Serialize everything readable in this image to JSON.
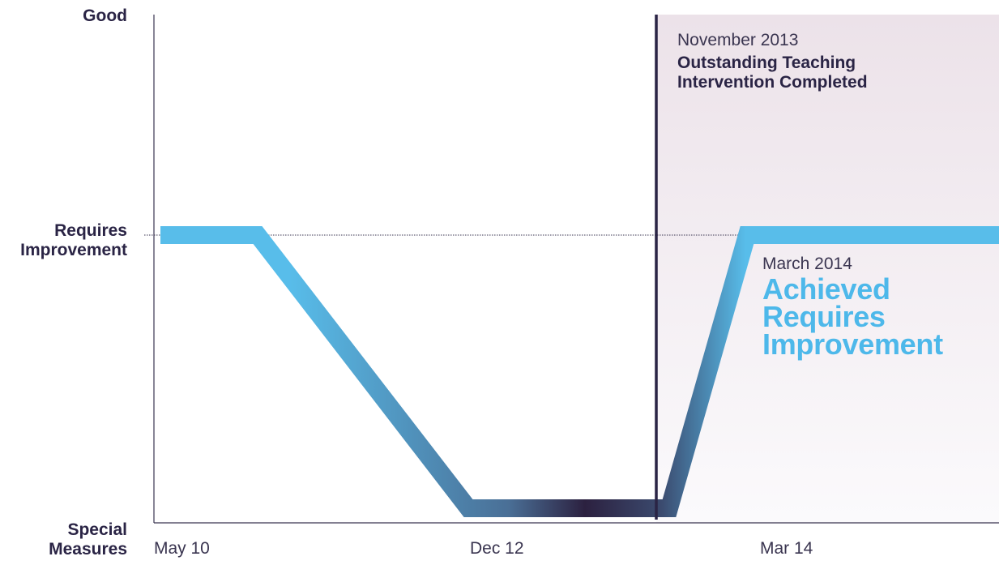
{
  "chart_data": {
    "type": "line",
    "y_categories": [
      "Special Measures",
      "Requires Improvement",
      "Good"
    ],
    "y_tick_labels": [
      "Good",
      "Requires\nImprovement",
      "Special\nMeasures"
    ],
    "x_tick_labels": [
      "May 10",
      "Dec 12",
      "Mar 14"
    ],
    "series": [
      {
        "points": [
          {
            "y": "Requires Improvement"
          },
          {
            "y": "Requires Improvement"
          },
          {
            "y": "Special Measures"
          },
          {
            "y": "Special Measures"
          },
          {
            "y": "Requires Improvement"
          },
          {
            "y": "Requires Improvement"
          }
        ]
      }
    ],
    "reference_line": {
      "y": "Requires Improvement",
      "style": "dotted"
    },
    "annotations": [
      {
        "date": "November 2013",
        "text": "Outstanding Teaching\nIntervention Completed",
        "marker": "vertical-line"
      },
      {
        "date": "March 2014",
        "text": "Achieved\nRequires\nImprovement"
      }
    ],
    "grid": false,
    "legend": "none"
  },
  "colors": {
    "line_high": "#58bdea",
    "line_low": "#2c2140",
    "marker": "#2a2445",
    "axis": "#3a3550",
    "shade_top": "#ece2e9",
    "shade_bottom": "#fbfafc",
    "annotation_highlight": "#4db8ea"
  }
}
